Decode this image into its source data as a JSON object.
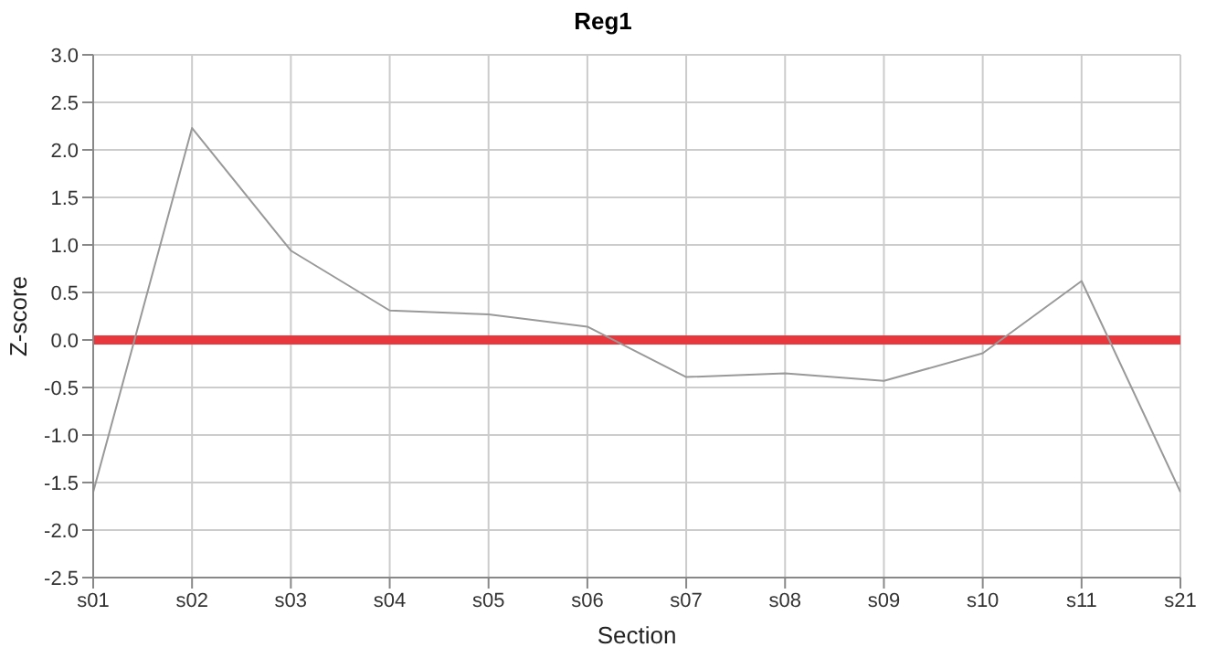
{
  "chart_data": {
    "type": "line",
    "title": "Reg1",
    "xlabel": "Section",
    "ylabel": "Z-score",
    "categories": [
      "s01",
      "s02",
      "s03",
      "s04",
      "s05",
      "s06",
      "s07",
      "s08",
      "s09",
      "s10",
      "s11",
      "s21"
    ],
    "series": [
      {
        "color": "#999999",
        "values": [
          -1.6,
          2.23,
          0.94,
          0.31,
          0.27,
          0.14,
          -0.39,
          -0.35,
          -0.43,
          -0.14,
          0.62,
          -1.6
        ]
      }
    ],
    "ylim": [
      -2.5,
      3.0
    ],
    "yticks": [
      {
        "value": -2.5,
        "label": "-2.5"
      },
      {
        "value": -2,
        "label": "-2.0"
      },
      {
        "value": -1.5,
        "label": "-1.5"
      },
      {
        "value": -1,
        "label": "-1.0"
      },
      {
        "value": -0.5,
        "label": "-0.5"
      },
      {
        "value": 0,
        "label": "0.0"
      },
      {
        "value": 0.5,
        "label": "0.5"
      },
      {
        "value": 1,
        "label": "1.0"
      },
      {
        "value": 1.5,
        "label": "1.5"
      },
      {
        "value": 2,
        "label": "2.0"
      },
      {
        "value": 2.5,
        "label": "2.5"
      },
      {
        "value": 3,
        "label": "3.0"
      }
    ],
    "ref_lines": [
      {
        "axis": "y",
        "value": 0,
        "color": "#e8383d"
      }
    ],
    "grid": true,
    "marker": "none",
    "line_style": "solid"
  }
}
